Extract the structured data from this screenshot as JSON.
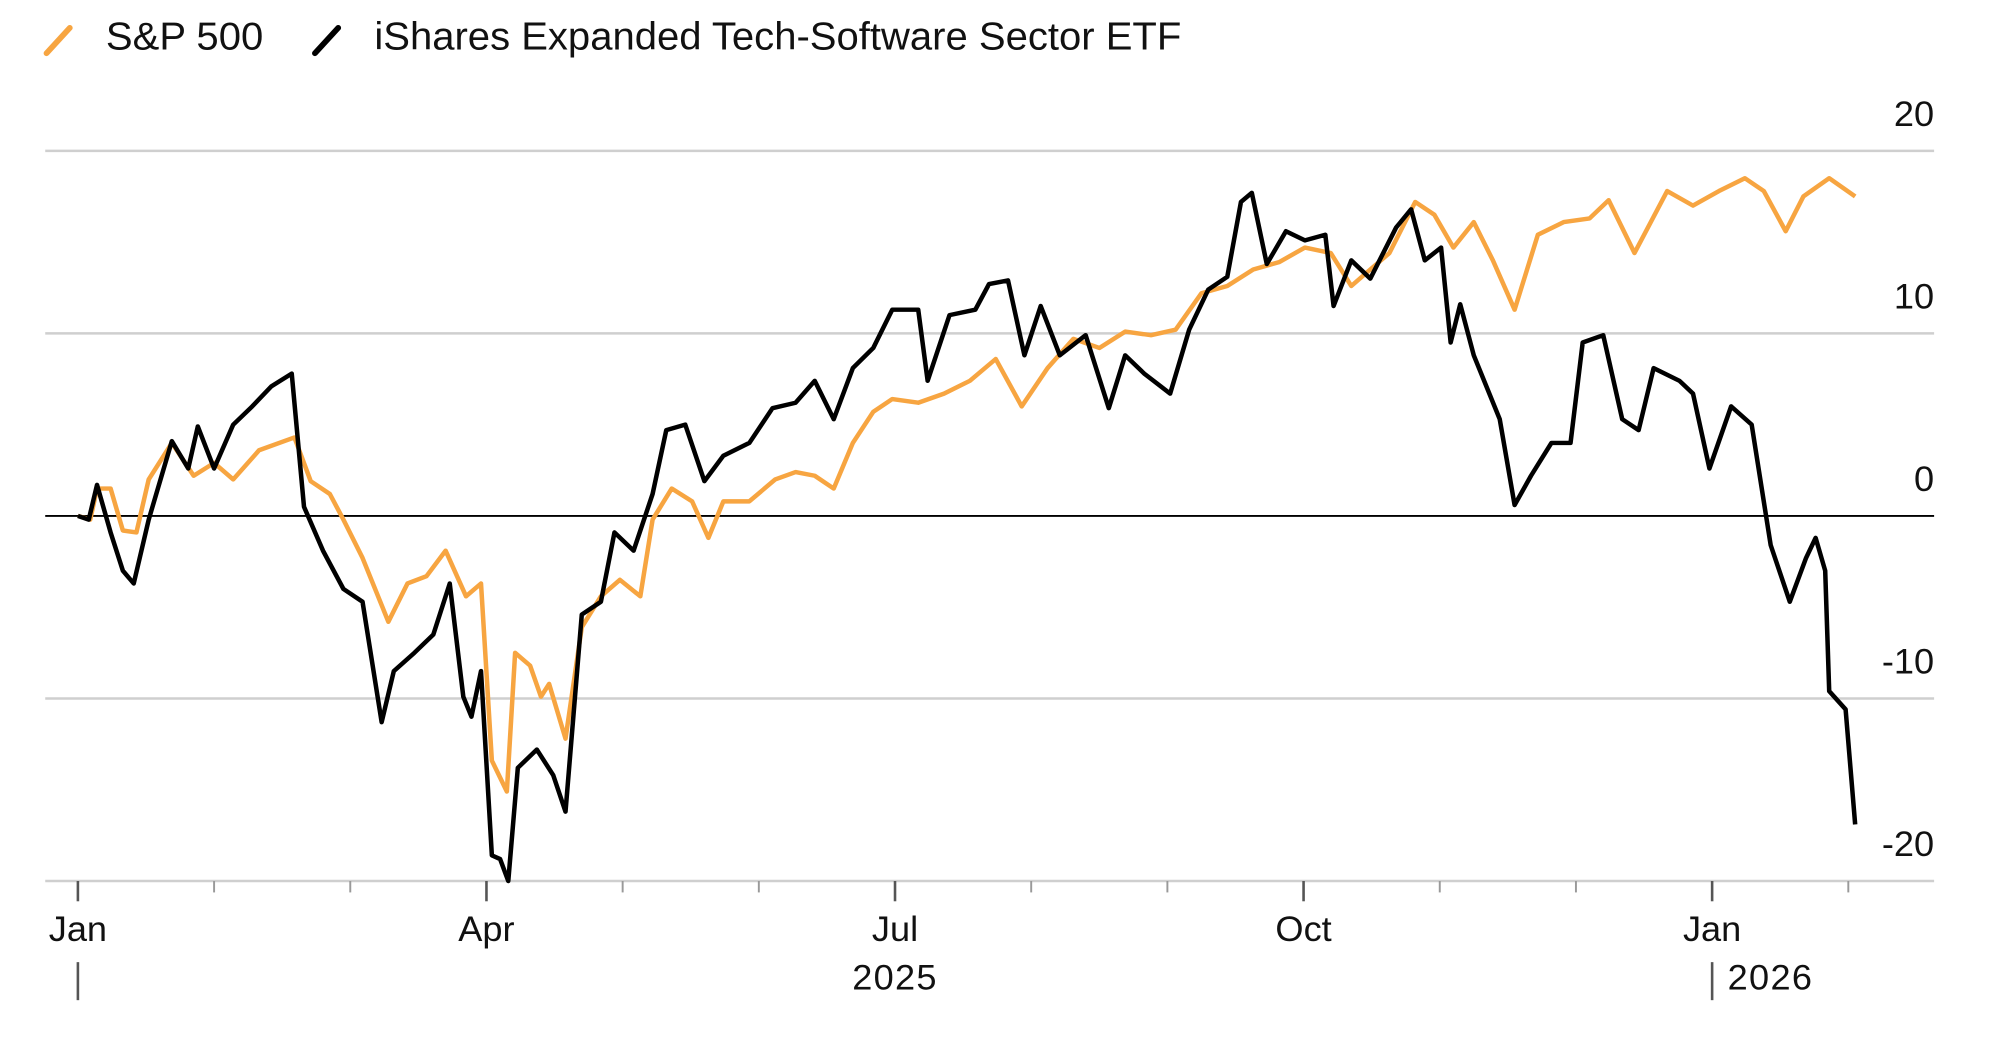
{
  "chart_data": {
    "type": "line",
    "legend": "top-left",
    "grid": true,
    "xlim": [
      -0.24,
      13.63
    ],
    "ylim": [
      -20,
      20
    ],
    "yticks": [
      -20,
      -10,
      0,
      10,
      20
    ],
    "xticks": [
      {
        "value": 0,
        "label": "Jan"
      },
      {
        "value": 3,
        "label": "Apr"
      },
      {
        "value": 6,
        "label": "Jul"
      },
      {
        "value": 9,
        "label": "Oct"
      },
      {
        "value": 12,
        "label": "Jan"
      }
    ],
    "minor_xticks": [
      1,
      2,
      4,
      5,
      7,
      8,
      10,
      11,
      13
    ],
    "year_labels": [
      {
        "value": 0,
        "label": "2025"
      },
      {
        "value": 12,
        "label": "2026"
      }
    ],
    "series": [
      {
        "name": "S&P 500",
        "color": "#f7a541",
        "x": [
          0,
          0.09,
          0.14,
          0.24,
          0.33,
          0.43,
          0.52,
          0.69,
          0.85,
          1.0,
          1.14,
          1.33,
          1.59,
          1.71,
          1.85,
          1.95,
          2.09,
          2.28,
          2.42,
          2.56,
          2.7,
          2.85,
          2.96,
          3.04,
          3.15,
          3.21,
          3.32,
          3.4,
          3.46,
          3.58,
          3.7,
          3.84,
          3.98,
          4.13,
          4.22,
          4.36,
          4.51,
          4.63,
          4.74,
          4.93,
          5.12,
          5.27,
          5.41,
          5.55,
          5.69,
          5.84,
          5.98,
          6.17,
          6.36,
          6.55,
          6.74,
          6.93,
          7.12,
          7.31,
          7.5,
          7.69,
          7.88,
          8.06,
          8.25,
          8.44,
          8.63,
          8.82,
          9.01,
          9.2,
          9.35,
          9.49,
          9.63,
          9.82,
          9.96,
          10.1,
          10.25,
          10.39,
          10.55,
          10.72,
          10.91,
          11.1,
          11.24,
          11.43,
          11.67,
          11.86,
          12.05,
          12.24,
          12.38,
          12.54,
          12.67,
          12.86,
          13.05
        ],
        "values": [
          0,
          -0.2,
          1.5,
          1.5,
          -0.8,
          -0.9,
          2,
          4,
          2.2,
          2.9,
          2,
          3.6,
          4.3,
          1.9,
          1.2,
          -0.2,
          -2.3,
          -5.8,
          -3.7,
          -3.3,
          -1.9,
          -4.4,
          -3.7,
          -13.4,
          -15.1,
          -7.5,
          -8.2,
          -9.9,
          -9.2,
          -12.2,
          -6.1,
          -4.4,
          -3.5,
          -4.4,
          -0.2,
          1.5,
          0.8,
          -1.2,
          0.8,
          0.8,
          2,
          2.4,
          2.2,
          1.5,
          4,
          5.7,
          6.4,
          6.2,
          6.7,
          7.4,
          8.6,
          6,
          8.1,
          9.7,
          9.2,
          10.1,
          9.9,
          10.2,
          12.2,
          12.6,
          13.5,
          13.9,
          14.7,
          14.4,
          12.6,
          13.5,
          14.4,
          17.2,
          16.5,
          14.7,
          16.1,
          14,
          11.3,
          15.4,
          16.1,
          16.3,
          17.3,
          14.4,
          17.8,
          17,
          17.8,
          18.5,
          17.8,
          15.6,
          17.5,
          18.5,
          17.5
        ]
      },
      {
        "name": "iShares Expanded Tech-Software Sector ETF",
        "color": "#000000",
        "x": [
          0,
          0.08,
          0.14,
          0.24,
          0.33,
          0.41,
          0.52,
          0.69,
          0.81,
          0.88,
          1.0,
          1.14,
          1.28,
          1.42,
          1.57,
          1.66,
          1.8,
          1.95,
          2.09,
          2.23,
          2.32,
          2.47,
          2.61,
          2.73,
          2.83,
          2.89,
          2.96,
          3.04,
          3.1,
          3.16,
          3.23,
          3.37,
          3.49,
          3.58,
          3.7,
          3.84,
          3.94,
          4.08,
          4.22,
          4.32,
          4.46,
          4.6,
          4.74,
          4.93,
          5.1,
          5.27,
          5.41,
          5.55,
          5.69,
          5.84,
          5.98,
          6.17,
          6.24,
          6.4,
          6.59,
          6.69,
          6.83,
          6.95,
          7.07,
          7.21,
          7.4,
          7.57,
          7.69,
          7.83,
          8.02,
          8.16,
          8.3,
          8.44,
          8.54,
          8.62,
          8.73,
          8.87,
          9.01,
          9.16,
          9.22,
          9.35,
          9.49,
          9.68,
          9.79,
          9.89,
          10.01,
          10.08,
          10.15,
          10.25,
          10.44,
          10.55,
          10.67,
          10.82,
          10.96,
          11.05,
          11.2,
          11.34,
          11.46,
          11.57,
          11.76,
          11.86,
          11.98,
          12.14,
          12.29,
          12.43,
          12.57,
          12.69,
          12.76,
          12.83,
          12.86,
          12.98,
          13.05
        ],
        "values": [
          0,
          -0.2,
          1.7,
          -0.9,
          -3,
          -3.7,
          -0.2,
          4.1,
          2.6,
          4.9,
          2.6,
          5,
          6,
          7.1,
          7.8,
          0.5,
          -1.9,
          -4,
          -4.7,
          -11.3,
          -8.5,
          -7.5,
          -6.5,
          -3.7,
          -9.9,
          -11,
          -8.5,
          -18.6,
          -18.8,
          -20,
          -13.8,
          -12.8,
          -14.2,
          -16.2,
          -5.4,
          -4.7,
          -0.9,
          -1.9,
          1.2,
          4.7,
          5,
          1.9,
          3.3,
          4,
          5.9,
          6.2,
          7.4,
          5.3,
          8.1,
          9.2,
          11.3,
          11.3,
          7.4,
          11,
          11.3,
          12.7,
          12.9,
          8.8,
          11.5,
          8.8,
          9.9,
          5.9,
          8.8,
          7.8,
          6.7,
          10.2,
          12.4,
          13.1,
          17.2,
          17.7,
          13.8,
          15.6,
          15.1,
          15.4,
          11.5,
          14,
          13,
          15.8,
          16.8,
          14,
          14.7,
          9.5,
          11.6,
          8.8,
          5.3,
          0.6,
          2.2,
          4,
          4,
          9.5,
          9.9,
          5.3,
          4.7,
          8.1,
          7.4,
          6.7,
          2.6,
          6,
          5,
          -1.6,
          -4.7,
          -2.3,
          -1.2,
          -3,
          -9.6,
          -10.6,
          -16.9
        ]
      }
    ]
  }
}
